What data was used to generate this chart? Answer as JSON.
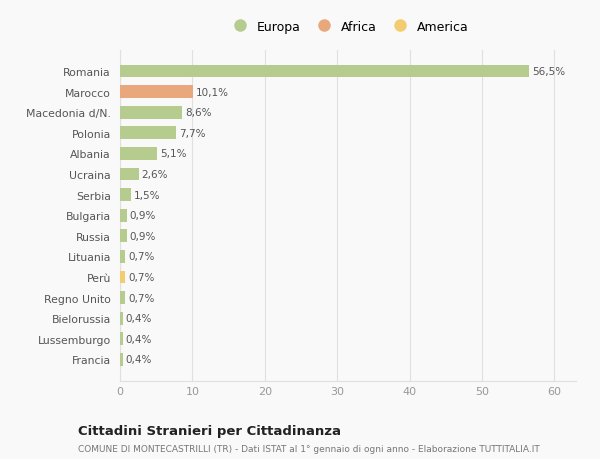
{
  "countries": [
    "Francia",
    "Lussemburgo",
    "Bielorussia",
    "Regno Unito",
    "Perù",
    "Lituania",
    "Russia",
    "Bulgaria",
    "Serbia",
    "Ucraina",
    "Albania",
    "Polonia",
    "Macedonia d/N.",
    "Marocco",
    "Romania"
  ],
  "values": [
    0.4,
    0.4,
    0.4,
    0.7,
    0.7,
    0.7,
    0.9,
    0.9,
    1.5,
    2.6,
    5.1,
    7.7,
    8.6,
    10.1,
    56.5
  ],
  "labels": [
    "0,4%",
    "0,4%",
    "0,4%",
    "0,7%",
    "0,7%",
    "0,7%",
    "0,9%",
    "0,9%",
    "1,5%",
    "2,6%",
    "5,1%",
    "7,7%",
    "8,6%",
    "10,1%",
    "56,5%"
  ],
  "continents": [
    "Europa",
    "Europa",
    "Europa",
    "Europa",
    "America",
    "Europa",
    "Europa",
    "Europa",
    "Europa",
    "Europa",
    "Europa",
    "Europa",
    "Europa",
    "Africa",
    "Europa"
  ],
  "colors": {
    "Europa": "#b5cc8e",
    "Africa": "#e8a87c",
    "America": "#f2cc6e"
  },
  "legend_order": [
    "Europa",
    "Africa",
    "America"
  ],
  "xlim": [
    0,
    63
  ],
  "xticks": [
    0,
    10,
    20,
    30,
    40,
    50,
    60
  ],
  "title": "Cittadini Stranieri per Cittadinanza",
  "subtitle": "COMUNE DI MONTECASTRILLI (TR) - Dati ISTAT al 1° gennaio di ogni anno - Elaborazione TUTTITALIA.IT",
  "bg_color": "#f9f9f9",
  "grid_color": "#e0e0e0",
  "bar_height": 0.62
}
